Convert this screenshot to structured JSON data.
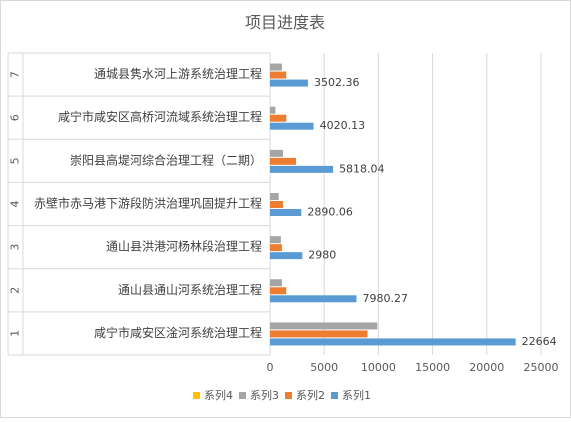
{
  "chart_data": {
    "type": "bar",
    "orientation": "horizontal",
    "title": "项目进度表",
    "groups": [
      "1",
      "2",
      "3",
      "4",
      "5",
      "6",
      "7"
    ],
    "categories": [
      "咸宁市咸安区淦河系统治理工程",
      "通山县通山河系统治理工程",
      "通山县洪港河杨林段治理工程",
      "赤壁市赤马港下游段防洪治理巩固提升工程",
      "崇阳县高堤河综合治理工程（二期）",
      "咸宁市咸安区高桥河流域系统治理工程",
      "通城县隽水河上游系统治理工程"
    ],
    "series": [
      {
        "name": "系列1",
        "color": "#5B9BD5",
        "values": [
          22664,
          7980.27,
          2980,
          2890.06,
          5818.04,
          4020.13,
          3502.36
        ],
        "labels": [
          "22664",
          "7980.27",
          "2980",
          "2890.06",
          "5818.04",
          "4020.13",
          "3502.36"
        ]
      },
      {
        "name": "系列2",
        "color": "#ED7D31",
        "values": [
          9000,
          1500,
          1100,
          1200,
          2400,
          1500,
          1500
        ]
      },
      {
        "name": "系列3",
        "color": "#A5A5A5",
        "values": [
          9900,
          1100,
          1000,
          800,
          1200,
          500,
          1100
        ]
      },
      {
        "name": "系列4",
        "color": "#FFC000",
        "values": [
          0,
          0,
          0,
          0,
          0,
          0,
          0
        ]
      }
    ],
    "xlim": [
      0,
      25000
    ],
    "xticks": [
      0,
      5000,
      10000,
      15000,
      20000,
      25000
    ],
    "legend": "bottom",
    "grid": true
  }
}
